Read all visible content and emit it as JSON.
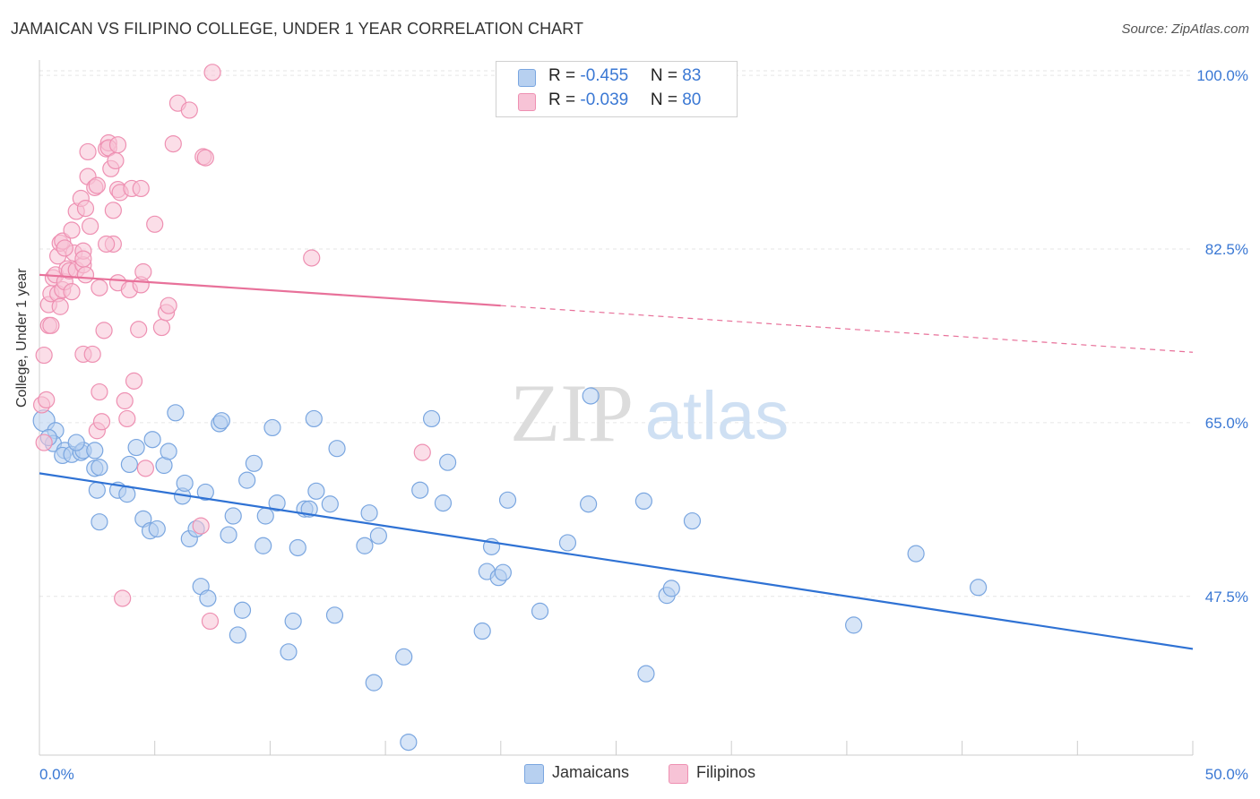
{
  "title": "JAMAICAN VS FILIPINO COLLEGE, UNDER 1 YEAR CORRELATION CHART",
  "source": "Source: ZipAtlas.com",
  "watermark": {
    "part1": "ZIP",
    "part2": "atlas"
  },
  "legend": {
    "rows": [
      {
        "r_label": "R = ",
        "r_value": "-0.455",
        "n_label": "N = ",
        "n_value": "83"
      },
      {
        "r_label": "R = ",
        "r_value": "-0.039",
        "n_label": "N = ",
        "n_value": "80"
      }
    ]
  },
  "bottom_legend": {
    "jamaicans": "Jamaicans",
    "filipinos": "Filipinos"
  },
  "colors": {
    "jamaicans_fill": "#b7d0f0",
    "jamaicans_stroke": "#7aa6e0",
    "jamaicans_line": "#2f72d4",
    "filipinos_fill": "#f7c3d6",
    "filipinos_stroke": "#ee90b2",
    "filipinos_line": "#e8719a",
    "accent_text": "#3a78d4",
    "grid": "#e6e6e6"
  },
  "chart_data": {
    "type": "scatter",
    "title": "JAMAICAN VS FILIPINO COLLEGE, UNDER 1 YEAR CORRELATION CHART",
    "xlabel": "",
    "ylabel": "College, Under 1 year",
    "xlim": [
      0,
      50
    ],
    "ylim": [
      31.5,
      102
    ],
    "x_tick_labels": [
      {
        "value": 0,
        "label": "0.0%"
      },
      {
        "value": 50,
        "label": "50.0%"
      }
    ],
    "y_tick_labels": [
      {
        "value": 100,
        "label": "100.0%"
      },
      {
        "value": 82.5,
        "label": "82.5%"
      },
      {
        "value": 65,
        "label": "65.0%"
      },
      {
        "value": 47.5,
        "label": "47.5%"
      }
    ],
    "grid": true,
    "legend_position": "top-center",
    "series": [
      {
        "name": "Jamaicans",
        "r": -0.455,
        "n": 83,
        "trend": {
          "x0": 0,
          "y0": 59.9,
          "x1": 50,
          "y1": 42.2
        },
        "points": [
          [
            0.2,
            65.2
          ],
          [
            0.7,
            64.2
          ],
          [
            0.6,
            62.9
          ],
          [
            1.1,
            62.2
          ],
          [
            1.0,
            61.7
          ],
          [
            1.4,
            61.8
          ],
          [
            1.8,
            62.0
          ],
          [
            1.9,
            62.2
          ],
          [
            2.4,
            62.2
          ],
          [
            2.5,
            58.2
          ],
          [
            2.6,
            55.0
          ],
          [
            2.4,
            60.4
          ],
          [
            2.6,
            60.5
          ],
          [
            3.4,
            58.2
          ],
          [
            3.8,
            57.8
          ],
          [
            3.9,
            60.8
          ],
          [
            4.2,
            62.5
          ],
          [
            4.5,
            55.3
          ],
          [
            4.8,
            54.1
          ],
          [
            4.9,
            63.3
          ],
          [
            5.1,
            54.3
          ],
          [
            5.4,
            60.7
          ],
          [
            5.6,
            62.1
          ],
          [
            5.9,
            66.0
          ],
          [
            6.2,
            57.6
          ],
          [
            6.3,
            58.9
          ],
          [
            6.5,
            53.3
          ],
          [
            6.8,
            54.3
          ],
          [
            7.0,
            48.5
          ],
          [
            7.2,
            58.0
          ],
          [
            7.3,
            47.3
          ],
          [
            7.8,
            64.9
          ],
          [
            7.9,
            65.2
          ],
          [
            8.2,
            53.7
          ],
          [
            8.4,
            55.6
          ],
          [
            8.6,
            43.6
          ],
          [
            8.8,
            46.1
          ],
          [
            9.0,
            59.2
          ],
          [
            9.3,
            60.9
          ],
          [
            9.7,
            52.6
          ],
          [
            9.8,
            55.6
          ],
          [
            10.1,
            64.5
          ],
          [
            10.3,
            56.9
          ],
          [
            10.8,
            41.9
          ],
          [
            11.0,
            45.0
          ],
          [
            11.2,
            52.4
          ],
          [
            11.5,
            56.3
          ],
          [
            11.7,
            56.3
          ],
          [
            11.9,
            65.4
          ],
          [
            12.0,
            58.1
          ],
          [
            12.6,
            56.8
          ],
          [
            12.8,
            45.6
          ],
          [
            12.9,
            62.4
          ],
          [
            14.1,
            52.6
          ],
          [
            14.3,
            55.9
          ],
          [
            14.5,
            38.8
          ],
          [
            14.7,
            53.6
          ],
          [
            15.8,
            41.4
          ],
          [
            16.0,
            32.8
          ],
          [
            16.5,
            58.2
          ],
          [
            17.0,
            65.4
          ],
          [
            17.5,
            56.9
          ],
          [
            17.7,
            61.0
          ],
          [
            19.2,
            44.0
          ],
          [
            19.4,
            50.0
          ],
          [
            19.6,
            52.5
          ],
          [
            19.9,
            49.4
          ],
          [
            20.1,
            49.9
          ],
          [
            20.3,
            57.2
          ],
          [
            21.7,
            46.0
          ],
          [
            22.9,
            52.9
          ],
          [
            23.8,
            56.8
          ],
          [
            23.9,
            67.7
          ],
          [
            26.2,
            57.1
          ],
          [
            26.3,
            39.7
          ],
          [
            27.2,
            47.6
          ],
          [
            27.4,
            48.3
          ],
          [
            28.3,
            55.1
          ],
          [
            35.3,
            44.6
          ],
          [
            38.0,
            51.8
          ],
          [
            40.7,
            48.4
          ],
          [
            0.4,
            63.5
          ],
          [
            1.6,
            63.0
          ]
        ]
      },
      {
        "name": "Filipinos",
        "r": -0.039,
        "n": 80,
        "trend": {
          "x0": 0,
          "y0": 79.9,
          "x1": 20,
          "y1": 76.8,
          "dash_x1": 50,
          "dash_y1": 72.1
        },
        "points": [
          [
            0.1,
            66.8
          ],
          [
            0.2,
            71.8
          ],
          [
            0.3,
            67.3
          ],
          [
            0.4,
            74.8
          ],
          [
            0.4,
            76.9
          ],
          [
            0.5,
            78.0
          ],
          [
            0.5,
            74.8
          ],
          [
            0.6,
            79.6
          ],
          [
            0.7,
            79.9
          ],
          [
            0.8,
            78.0
          ],
          [
            0.8,
            81.8
          ],
          [
            0.9,
            83.1
          ],
          [
            0.9,
            76.7
          ],
          [
            1.0,
            78.4
          ],
          [
            1.0,
            83.3
          ],
          [
            1.1,
            79.2
          ],
          [
            1.2,
            80.5
          ],
          [
            1.3,
            80.3
          ],
          [
            1.4,
            84.4
          ],
          [
            1.4,
            78.2
          ],
          [
            1.5,
            82.1
          ],
          [
            1.6,
            80.4
          ],
          [
            1.6,
            86.3
          ],
          [
            1.8,
            87.6
          ],
          [
            1.9,
            80.9
          ],
          [
            1.9,
            82.3
          ],
          [
            1.9,
            81.5
          ],
          [
            1.9,
            71.9
          ],
          [
            2.0,
            79.9
          ],
          [
            2.0,
            86.6
          ],
          [
            2.1,
            92.3
          ],
          [
            2.1,
            89.8
          ],
          [
            2.2,
            84.8
          ],
          [
            2.3,
            71.9
          ],
          [
            2.4,
            88.7
          ],
          [
            2.5,
            88.9
          ],
          [
            2.5,
            64.2
          ],
          [
            2.6,
            68.1
          ],
          [
            2.6,
            78.6
          ],
          [
            2.7,
            65.1
          ],
          [
            2.8,
            74.3
          ],
          [
            2.9,
            92.6
          ],
          [
            3.0,
            93.2
          ],
          [
            3.0,
            92.7
          ],
          [
            3.1,
            90.6
          ],
          [
            3.2,
            86.4
          ],
          [
            3.2,
            83.0
          ],
          [
            3.3,
            91.4
          ],
          [
            3.4,
            93.0
          ],
          [
            3.4,
            88.5
          ],
          [
            3.4,
            79.1
          ],
          [
            3.5,
            88.2
          ],
          [
            3.6,
            47.3
          ],
          [
            3.7,
            67.2
          ],
          [
            3.8,
            65.4
          ],
          [
            3.9,
            78.4
          ],
          [
            4.0,
            88.6
          ],
          [
            4.1,
            69.2
          ],
          [
            4.3,
            74.4
          ],
          [
            4.4,
            88.6
          ],
          [
            4.4,
            78.9
          ],
          [
            4.5,
            80.2
          ],
          [
            4.6,
            60.4
          ],
          [
            5.0,
            85.0
          ],
          [
            5.3,
            74.6
          ],
          [
            5.5,
            76.1
          ],
          [
            5.6,
            76.8
          ],
          [
            5.8,
            93.1
          ],
          [
            6.0,
            97.2
          ],
          [
            6.5,
            96.5
          ],
          [
            7.0,
            54.6
          ],
          [
            7.1,
            91.8
          ],
          [
            7.2,
            91.7
          ],
          [
            7.4,
            45.0
          ],
          [
            7.5,
            100.3
          ],
          [
            11.8,
            81.6
          ],
          [
            16.6,
            62.0
          ],
          [
            0.2,
            63.0
          ],
          [
            1.1,
            82.6
          ],
          [
            2.9,
            83.0
          ]
        ]
      }
    ]
  }
}
